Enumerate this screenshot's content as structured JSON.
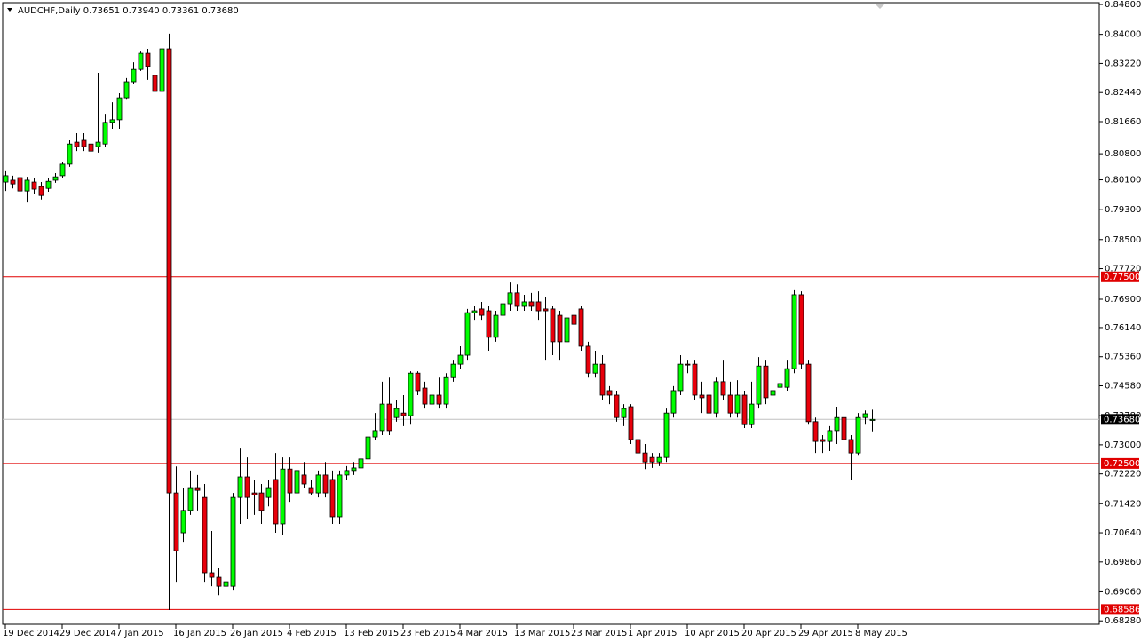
{
  "chart_data": {
    "type": "candlestick",
    "title": "AUDCHF,Daily 0.73651 0.73940 0.73361 0.73680",
    "up_color": "#00ff00",
    "down_color": "#e8000b",
    "ylim": [
      0.8492,
      0.6819
    ],
    "yticks": [
      {
        "value": 0.848,
        "label": "0.84800"
      },
      {
        "value": 0.84,
        "label": "0.84000"
      },
      {
        "value": 0.8322,
        "label": "0.83220"
      },
      {
        "value": 0.8244,
        "label": "0.82440"
      },
      {
        "value": 0.8166,
        "label": "0.81660"
      },
      {
        "value": 0.808,
        "label": "0.80800"
      },
      {
        "value": 0.801,
        "label": "0.80100"
      },
      {
        "value": 0.793,
        "label": "0.79300"
      },
      {
        "value": 0.785,
        "label": "0.78500"
      },
      {
        "value": 0.7772,
        "label": "0.77720"
      },
      {
        "value": 0.769,
        "label": "0.76900"
      },
      {
        "value": 0.7614,
        "label": "0.76140"
      },
      {
        "value": 0.7536,
        "label": "0.75360"
      },
      {
        "value": 0.7458,
        "label": "0.74580"
      },
      {
        "value": 0.7378,
        "label": "0.73780"
      },
      {
        "value": 0.73,
        "label": "0.73000"
      },
      {
        "value": 0.7222,
        "label": "0.72220"
      },
      {
        "value": 0.7142,
        "label": "0.71420"
      },
      {
        "value": 0.7064,
        "label": "0.70640"
      },
      {
        "value": 0.6986,
        "label": "0.69860"
      },
      {
        "value": 0.6906,
        "label": "0.69060"
      },
      {
        "value": 0.6828,
        "label": "0.68280"
      }
    ],
    "hlines": [
      {
        "value": 0.775,
        "label": "0.77500",
        "color": "#e00000"
      },
      {
        "value": 0.725,
        "label": "0.72500",
        "color": "#e00000"
      },
      {
        "value": 0.68586,
        "label": "0.68586",
        "color": "#e00000"
      }
    ],
    "last_price": {
      "value": 0.7368,
      "label": "0.73680",
      "color": "#c0c0c0"
    },
    "categories": [
      "19 Dec 2014",
      null,
      null,
      null,
      null,
      null,
      null,
      null,
      "29 Dec 2014",
      null,
      null,
      null,
      null,
      null,
      null,
      null,
      "7 Jan 2015",
      null,
      null,
      null,
      null,
      null,
      null,
      null,
      "16 Jan 2015",
      null,
      null,
      null,
      null,
      null,
      null,
      null,
      "26 Jan 2015",
      null,
      null,
      null,
      null,
      null,
      null,
      null,
      "4 Feb 2015",
      null,
      null,
      null,
      null,
      null,
      null,
      null,
      "13 Feb 2015",
      null,
      null,
      null,
      null,
      null,
      null,
      null,
      "23 Feb 2015",
      null,
      null,
      null,
      null,
      null,
      null,
      null,
      "4 Mar 2015",
      null,
      null,
      null,
      null,
      null,
      null,
      null,
      "13 Mar 2015",
      null,
      null,
      null,
      null,
      null,
      null,
      null,
      "23 Mar 2015",
      null,
      null,
      null,
      null,
      null,
      null,
      null,
      "1 Apr 2015",
      null,
      null,
      null,
      null,
      null,
      null,
      null,
      "10 Apr 2015",
      null,
      null,
      null,
      null,
      null,
      null,
      null,
      "20 Apr 2015",
      null,
      null,
      null,
      null,
      null,
      null,
      null,
      "29 Apr 2015",
      null,
      null,
      null,
      null,
      null,
      null,
      null,
      "8 May 2015",
      null,
      null
    ],
    "open": [
      0.8004,
      0.8009,
      0.8016,
      0.798,
      0.8004,
      0.7992,
      0.7987,
      0.8009,
      0.8021,
      0.8052,
      0.8111,
      0.8116,
      0.8106,
      0.8099,
      0.8106,
      0.8164,
      0.8171,
      0.823,
      0.8273,
      0.8306,
      0.8349,
      0.829,
      0.8247,
      0.8361,
      0.7171,
      0.7064,
      0.7124,
      0.7183,
      0.7159,
      0.6957,
      0.6945,
      0.6921,
      0.6921,
      0.7159,
      0.7214,
      0.7171,
      0.7171,
      0.7159,
      0.7207,
      0.7088,
      0.7235,
      0.7171,
      0.7219,
      0.7183,
      0.7171,
      0.7219,
      0.7207,
      0.7107,
      0.7219,
      0.7231,
      0.7238,
      0.7262,
      0.7321,
      0.7338,
      0.7409,
      0.7373,
      0.7385,
      0.7378,
      0.7492,
      0.7452,
      0.7409,
      0.7433,
      0.7409,
      0.748,
      0.7516,
      0.754,
      0.7654,
      0.7664,
      0.7659,
      0.7588,
      0.7647,
      0.7678,
      0.7707,
      0.7671,
      0.7683,
      0.7683,
      0.7664,
      0.7664,
      0.7647,
      0.7576,
      0.7647,
      0.7664,
      0.7564,
      0.7492,
      0.7516,
      0.7445,
      0.7433,
      0.7373,
      0.7402,
      0.7314,
      0.7278,
      0.7266,
      0.7254,
      0.7266,
      0.7385,
      0.7445,
      0.7516,
      0.7516,
      0.7433,
      0.7433,
      0.7385,
      0.7469,
      0.7433,
      0.7385,
      0.7433,
      0.7354,
      0.7409,
      0.7511,
      0.7433,
      0.7454,
      0.7454,
      0.7504,
      0.7702,
      0.7516,
      0.7362,
      0.7314,
      0.7309,
      0.7338,
      0.7373,
      0.7314,
      0.7278,
      0.7373,
      0.73651
    ],
    "high": [
      0.8033,
      0.8021,
      0.8026,
      0.8018,
      0.8016,
      0.8004,
      0.8016,
      0.8028,
      0.8059,
      0.8116,
      0.8135,
      0.8135,
      0.8123,
      0.8297,
      0.8187,
      0.8218,
      0.8242,
      0.8283,
      0.8325,
      0.8356,
      0.8361,
      0.8361,
      0.8385,
      0.8402,
      0.7242,
      0.7183,
      0.7231,
      0.7219,
      0.7195,
      0.7069,
      0.6969,
      0.6957,
      0.7171,
      0.729,
      0.7266,
      0.7207,
      0.7195,
      0.7207,
      0.7278,
      0.7266,
      0.7266,
      0.7278,
      0.7254,
      0.7207,
      0.7231,
      0.7254,
      0.7231,
      0.7231,
      0.7243,
      0.7254,
      0.7273,
      0.7331,
      0.7385,
      0.7469,
      0.748,
      0.7421,
      0.7433,
      0.7497,
      0.7497,
      0.7469,
      0.7445,
      0.748,
      0.7492,
      0.7528,
      0.7564,
      0.7664,
      0.7671,
      0.7683,
      0.7671,
      0.7659,
      0.7707,
      0.7735,
      0.773,
      0.7702,
      0.7707,
      0.7711,
      0.7695,
      0.7671,
      0.7659,
      0.7647,
      0.7659,
      0.7671,
      0.7576,
      0.7552,
      0.754,
      0.7457,
      0.7445,
      0.7409,
      0.7409,
      0.7326,
      0.7302,
      0.7278,
      0.7278,
      0.7397,
      0.7457,
      0.754,
      0.7528,
      0.7528,
      0.7469,
      0.7469,
      0.748,
      0.7528,
      0.7469,
      0.7473,
      0.7445,
      0.7469,
      0.7535,
      0.7528,
      0.7457,
      0.748,
      0.7528,
      0.7714,
      0.7711,
      0.7528,
      0.7373,
      0.7326,
      0.735,
      0.7402,
      0.7409,
      0.7326,
      0.7385,
      0.7392,
      0.7394
    ],
    "low": [
      0.798,
      0.7987,
      0.7968,
      0.7949,
      0.7973,
      0.7957,
      0.7978,
      0.8002,
      0.8016,
      0.8045,
      0.8087,
      0.8087,
      0.8075,
      0.8083,
      0.8099,
      0.8147,
      0.8147,
      0.8225,
      0.8266,
      0.8302,
      0.8278,
      0.8235,
      0.8211,
      0.6857,
      0.6933,
      0.704,
      0.7112,
      0.7124,
      0.6933,
      0.6921,
      0.6897,
      0.6902,
      0.6909,
      0.7088,
      0.71,
      0.7112,
      0.7088,
      0.7135,
      0.7064,
      0.7057,
      0.7147,
      0.7159,
      0.7183,
      0.7164,
      0.7159,
      0.7159,
      0.7088,
      0.7088,
      0.7207,
      0.7219,
      0.7226,
      0.725,
      0.7314,
      0.7326,
      0.7326,
      0.7362,
      0.735,
      0.7354,
      0.7433,
      0.7397,
      0.7385,
      0.7397,
      0.7397,
      0.7469,
      0.7504,
      0.7528,
      0.7635,
      0.7635,
      0.7552,
      0.7576,
      0.7635,
      0.7659,
      0.7659,
      0.7659,
      0.7659,
      0.7635,
      0.7528,
      0.754,
      0.7528,
      0.7564,
      0.76,
      0.7552,
      0.748,
      0.748,
      0.7421,
      0.7409,
      0.7362,
      0.735,
      0.7302,
      0.7231,
      0.7235,
      0.7238,
      0.7243,
      0.7254,
      0.7373,
      0.7433,
      0.7492,
      0.7421,
      0.7385,
      0.7373,
      0.7373,
      0.7421,
      0.7373,
      0.7373,
      0.7345,
      0.7345,
      0.7397,
      0.7409,
      0.7421,
      0.7445,
      0.7445,
      0.7492,
      0.7504,
      0.7354,
      0.7278,
      0.7278,
      0.7283,
      0.7302,
      0.7259,
      0.7207,
      0.7273,
      0.7354,
      0.73361
    ],
    "close": [
      0.8021,
      0.7999,
      0.798,
      0.8009,
      0.7985,
      0.7968,
      0.8006,
      0.8018,
      0.8052,
      0.8106,
      0.8099,
      0.8099,
      0.8087,
      0.8111,
      0.8164,
      0.8171,
      0.823,
      0.8273,
      0.8306,
      0.8349,
      0.8314,
      0.8247,
      0.8361,
      0.7171,
      0.7016,
      0.7124,
      0.7183,
      0.7178,
      0.6957,
      0.6945,
      0.6921,
      0.6933,
      0.7159,
      0.7214,
      0.7159,
      0.7166,
      0.7124,
      0.7183,
      0.7088,
      0.7235,
      0.7171,
      0.7231,
      0.7195,
      0.7171,
      0.7219,
      0.7171,
      0.7107,
      0.7219,
      0.7231,
      0.7238,
      0.7262,
      0.7321,
      0.7338,
      0.7409,
      0.7338,
      0.7397,
      0.7378,
      0.7492,
      0.7445,
      0.7409,
      0.7433,
      0.7409,
      0.748,
      0.7516,
      0.754,
      0.7654,
      0.7659,
      0.7647,
      0.7588,
      0.7647,
      0.7678,
      0.7707,
      0.7671,
      0.7683,
      0.7671,
      0.7659,
      0.7659,
      0.7576,
      0.7576,
      0.764,
      0.7623,
      0.7564,
      0.7492,
      0.7516,
      0.7433,
      0.7433,
      0.7373,
      0.7397,
      0.7314,
      0.7278,
      0.7254,
      0.7254,
      0.7266,
      0.7385,
      0.7445,
      0.7516,
      0.7514,
      0.7433,
      0.7426,
      0.7385,
      0.7469,
      0.7433,
      0.7385,
      0.7433,
      0.7354,
      0.7409,
      0.7511,
      0.7426,
      0.7445,
      0.7464,
      0.7504,
      0.7702,
      0.7516,
      0.7362,
      0.7309,
      0.7309,
      0.7338,
      0.7373,
      0.7314,
      0.7278,
      0.7373,
      0.7383,
      0.7368
    ]
  }
}
